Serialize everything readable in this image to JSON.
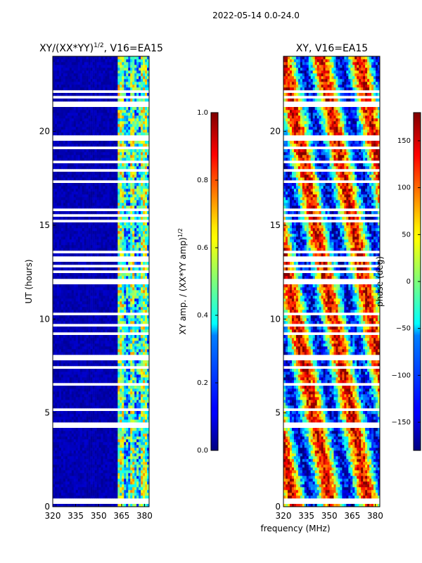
{
  "suptitle": "2022-05-14 0.0-24.0",
  "chart_data": [
    {
      "type": "heatmap",
      "title": "XY/(XX*YY)",
      "title_exponent": "1/2",
      "title_suffix": ", V16=EA15",
      "xlabel": "",
      "ylabel": "UT (hours)",
      "xlim": [
        320,
        383
      ],
      "ylim": [
        0,
        24
      ],
      "xticks": [
        320,
        335,
        350,
        365,
        380
      ],
      "yticks": [
        0,
        5,
        10,
        15,
        20
      ],
      "colorbar": {
        "label": "XY amp. / (XX*YY amp)",
        "label_exponent": "1/2",
        "range": [
          0.0,
          1.0
        ],
        "ticks": [
          "0.0",
          "0.2",
          "0.4",
          "0.6",
          "0.8",
          "1.0"
        ]
      }
    },
    {
      "type": "heatmap",
      "title": "XY, V16=EA15",
      "xlabel": "frequency (MHz)",
      "ylabel": "",
      "xlim": [
        320,
        383
      ],
      "ylim": [
        0,
        24
      ],
      "xticks": [
        320,
        335,
        350,
        365,
        380
      ],
      "yticks": [
        0,
        5,
        10,
        15,
        20
      ],
      "colorbar": {
        "label": "phase (deg)",
        "range": [
          -180,
          180
        ],
        "ticks": [
          "150",
          "100",
          "50",
          "0",
          "−50",
          "−100",
          "−150"
        ]
      }
    }
  ]
}
